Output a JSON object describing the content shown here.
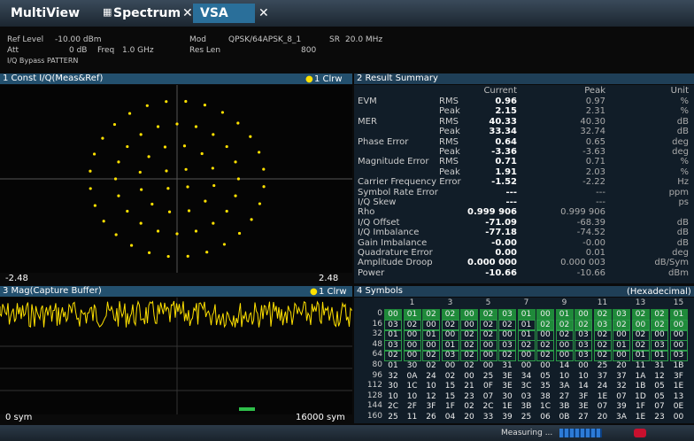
{
  "tabs": {
    "multiview": "MultiView",
    "spectrum": "Spectrum",
    "vsa": "VSA"
  },
  "header": {
    "ref_level_label": "Ref Level",
    "ref_level": "-10.00 dBm",
    "att_label": "Att",
    "att": "0 dB",
    "freq_label": "Freq",
    "freq": "1.0 GHz",
    "mod_label": "Mod",
    "mod": "QPSK/64APSK_8_1",
    "sr_label": "SR",
    "sr": "20.0 MHz",
    "res_len_label": "Res Len",
    "res_len": "800",
    "iq_bypass": "I/Q Bypass PATTERN"
  },
  "panel1": {
    "title": "1 Const I/Q(Meas&Ref)",
    "trace": "1 Clrw",
    "x_min": "-2.48",
    "x_max": "2.48"
  },
  "panel2": {
    "title": "2 Result Summary",
    "columns": [
      "Current",
      "Peak",
      "Unit"
    ],
    "rows": [
      {
        "label": "EVM",
        "sub": "RMS",
        "current": "0.96",
        "peak": "0.97",
        "unit": "%"
      },
      {
        "sub": "Peak",
        "current": "2.15",
        "peak": "2.31",
        "unit": "%"
      },
      {
        "label": "MER",
        "sub": "RMS",
        "current": "40.33",
        "peak": "40.30",
        "unit": "dB"
      },
      {
        "sub": "Peak",
        "current": "33.34",
        "peak": "32.74",
        "unit": "dB"
      },
      {
        "label": "Phase Error",
        "sub": "RMS",
        "current": "0.64",
        "peak": "0.65",
        "unit": "deg"
      },
      {
        "sub": "Peak",
        "current": "-3.36",
        "peak": "-3.63",
        "unit": "deg"
      },
      {
        "label": "Magnitude Error",
        "sub": "RMS",
        "current": "0.71",
        "peak": "0.71",
        "unit": "%"
      },
      {
        "sub": "Peak",
        "current": "1.91",
        "peak": "2.03",
        "unit": "%"
      },
      {
        "label": "Carrier Frequency Error",
        "current": "-1.52",
        "peak": "-2.22",
        "unit": "Hz"
      },
      {
        "label": "Symbol Rate Error",
        "current": "---",
        "peak": "---",
        "unit": "ppm"
      },
      {
        "label": "I/Q Skew",
        "current": "---",
        "peak": "---",
        "unit": "ps"
      },
      {
        "label": "Rho",
        "current": "0.999 906",
        "peak": "0.999 906"
      },
      {
        "label": "I/Q Offset",
        "current": "-71.09",
        "peak": "-68.39",
        "unit": "dB"
      },
      {
        "label": "I/Q Imbalance",
        "current": "-77.18",
        "peak": "-74.52",
        "unit": "dB"
      },
      {
        "label": "Gain Imbalance",
        "current": "-0.00",
        "peak": "-0.00",
        "unit": "dB"
      },
      {
        "label": "Quadrature Error",
        "current": "0.00",
        "peak": "0.01",
        "unit": "deg"
      },
      {
        "label": "Amplitude Droop",
        "current": "0.000 000",
        "peak": "0.000 003",
        "unit": "dB/Sym"
      },
      {
        "label": "Power",
        "current": "-10.66",
        "peak": "-10.66",
        "unit": "dBm"
      }
    ]
  },
  "panel3": {
    "title": "3 Mag(Capture Buffer)",
    "trace": "1 Clrw",
    "x_min": "0 sym",
    "x_max": "16000 sym"
  },
  "panel4": {
    "title": "4 Symbols",
    "format": "(Hexadecimal)",
    "column_labels": [
      "1",
      "3",
      "5",
      "7",
      "9",
      "11",
      "13",
      "15"
    ],
    "rows": [
      {
        "index": "0",
        "values": [
          "00",
          "01",
          "02",
          "02",
          "00",
          "02",
          "03",
          "01",
          "00",
          "01",
          "00",
          "02",
          "03",
          "02",
          "02",
          "01"
        ]
      },
      {
        "index": "16",
        "values": [
          "03",
          "02",
          "00",
          "02",
          "00",
          "02",
          "02",
          "01",
          "02",
          "02",
          "02",
          "03",
          "02",
          "00",
          "02",
          "00"
        ]
      },
      {
        "index": "32",
        "values": [
          "01",
          "00",
          "01",
          "00",
          "02",
          "02",
          "00",
          "01",
          "00",
          "02",
          "03",
          "02",
          "00",
          "02",
          "00",
          "00"
        ]
      },
      {
        "index": "48",
        "values": [
          "03",
          "00",
          "00",
          "01",
          "02",
          "00",
          "03",
          "02",
          "02",
          "00",
          "03",
          "02",
          "01",
          "02",
          "03",
          "00"
        ]
      },
      {
        "index": "64",
        "values": [
          "02",
          "00",
          "02",
          "03",
          "02",
          "00",
          "02",
          "00",
          "02",
          "00",
          "03",
          "02",
          "00",
          "01",
          "01",
          "03"
        ]
      },
      {
        "index": "80",
        "values": [
          "01",
          "30",
          "02",
          "00",
          "02",
          "00",
          "31",
          "00",
          "00",
          "14",
          "00",
          "25",
          "20",
          "11",
          "31",
          "1B"
        ]
      },
      {
        "index": "96",
        "values": [
          "32",
          "0A",
          "24",
          "02",
          "00",
          "25",
          "3E",
          "34",
          "05",
          "10",
          "10",
          "37",
          "37",
          "1A",
          "12",
          "3F"
        ]
      },
      {
        "index": "112",
        "values": [
          "30",
          "1C",
          "10",
          "15",
          "21",
          "0F",
          "3E",
          "3C",
          "35",
          "3A",
          "14",
          "24",
          "32",
          "1B",
          "05",
          "1E"
        ]
      },
      {
        "index": "128",
        "values": [
          "10",
          "10",
          "12",
          "15",
          "23",
          "07",
          "30",
          "03",
          "38",
          "27",
          "3F",
          "1E",
          "07",
          "1D",
          "05",
          "13"
        ]
      },
      {
        "index": "144",
        "values": [
          "2C",
          "2F",
          "3F",
          "1F",
          "02",
          "2C",
          "1E",
          "3B",
          "1C",
          "3B",
          "3E",
          "07",
          "39",
          "1F",
          "07",
          "0E"
        ]
      },
      {
        "index": "160",
        "values": [
          "25",
          "11",
          "26",
          "04",
          "20",
          "33",
          "39",
          "25",
          "06",
          "0B",
          "27",
          "20",
          "3A",
          "1E",
          "23",
          "00"
        ]
      }
    ]
  },
  "status": {
    "state": "Measuring ..."
  }
}
